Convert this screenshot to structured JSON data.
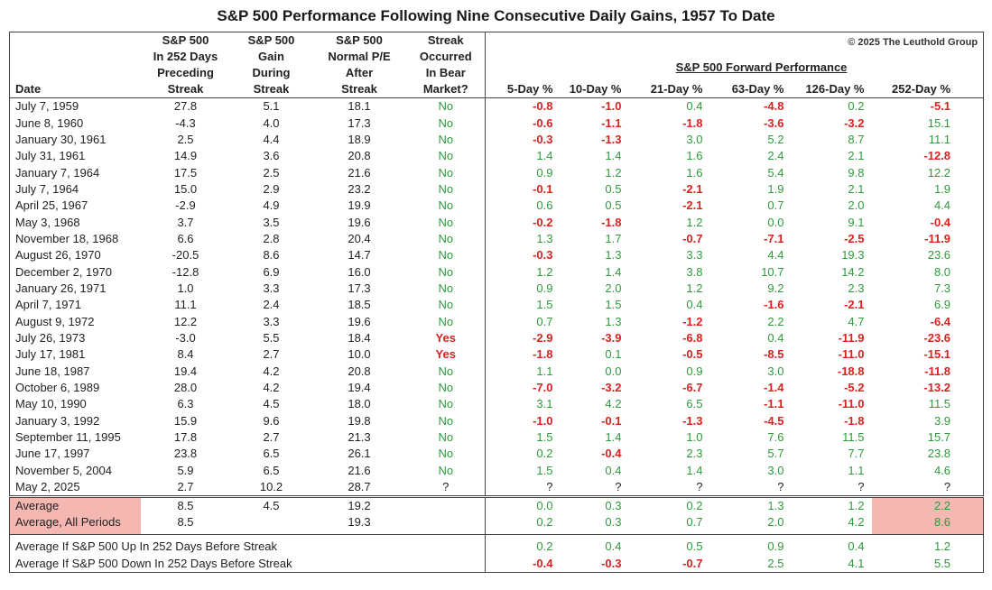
{
  "title": "S&P 500 Performance Following Nine Consecutive Daily Gains, 1957 To Date",
  "copyright": "© 2025 The Leuthold Group",
  "table": {
    "group_header": "S&P 500 Forward Performance",
    "columns": [
      [
        "Date"
      ],
      [
        "S&P 500",
        "In 252 Days",
        "Preceding",
        "Streak"
      ],
      [
        "S&P 500",
        "Gain",
        "During",
        "Streak"
      ],
      [
        "S&P 500",
        "Normal P/E",
        "After",
        "Streak"
      ],
      [
        "Streak",
        "Occurred",
        "In Bear",
        "Market?"
      ],
      [
        "5-Day %"
      ],
      [
        "10-Day %"
      ],
      [
        "21-Day %"
      ],
      [
        "63-Day %"
      ],
      [
        "126-Day %"
      ],
      [
        "252-Day %"
      ]
    ],
    "rows": [
      [
        "July 7, 1959",
        "27.8",
        "5.1",
        "18.1",
        "No",
        "-0.8",
        "-1.0",
        "0.4",
        "-4.8",
        "0.2",
        "-5.1"
      ],
      [
        "June 8, 1960",
        "-4.3",
        "4.0",
        "17.3",
        "No",
        "-0.6",
        "-1.1",
        "-1.8",
        "-3.6",
        "-3.2",
        "15.1"
      ],
      [
        "January 30, 1961",
        "2.5",
        "4.4",
        "18.9",
        "No",
        "-0.3",
        "-1.3",
        "3.0",
        "5.2",
        "8.7",
        "11.1"
      ],
      [
        "July 31, 1961",
        "14.9",
        "3.6",
        "20.8",
        "No",
        "1.4",
        "1.4",
        "1.6",
        "2.4",
        "2.1",
        "-12.8"
      ],
      [
        "January 7, 1964",
        "17.5",
        "2.5",
        "21.6",
        "No",
        "0.9",
        "1.2",
        "1.6",
        "5.4",
        "9.8",
        "12.2"
      ],
      [
        "July 7, 1964",
        "15.0",
        "2.9",
        "23.2",
        "No",
        "-0.1",
        "0.5",
        "-2.1",
        "1.9",
        "2.1",
        "1.9"
      ],
      [
        "April 25, 1967",
        "-2.9",
        "4.9",
        "19.9",
        "No",
        "0.6",
        "0.5",
        "-2.1",
        "0.7",
        "2.0",
        "4.4"
      ],
      [
        "May 3, 1968",
        "3.7",
        "3.5",
        "19.6",
        "No",
        "-0.2",
        "-1.8",
        "1.2",
        "0.0",
        "9.1",
        "-0.4"
      ],
      [
        "November 18, 1968",
        "6.6",
        "2.8",
        "20.4",
        "No",
        "1.3",
        "1.7",
        "-0.7",
        "-7.1",
        "-2.5",
        "-11.9"
      ],
      [
        "August 26, 1970",
        "-20.5",
        "8.6",
        "14.7",
        "No",
        "-0.3",
        "1.3",
        "3.3",
        "4.4",
        "19.3",
        "23.6"
      ],
      [
        "December 2, 1970",
        "-12.8",
        "6.9",
        "16.0",
        "No",
        "1.2",
        "1.4",
        "3.8",
        "10.7",
        "14.2",
        "8.0"
      ],
      [
        "January 26, 1971",
        "1.0",
        "3.3",
        "17.3",
        "No",
        "0.9",
        "2.0",
        "1.2",
        "9.2",
        "2.3",
        "7.3"
      ],
      [
        "April 7, 1971",
        "11.1",
        "2.4",
        "18.5",
        "No",
        "1.5",
        "1.5",
        "0.4",
        "-1.6",
        "-2.1",
        "6.9"
      ],
      [
        "August 9, 1972",
        "12.2",
        "3.3",
        "19.6",
        "No",
        "0.7",
        "1.3",
        "-1.2",
        "2.2",
        "4.7",
        "-6.4"
      ],
      [
        "July 26, 1973",
        "-3.0",
        "5.5",
        "18.4",
        "Yes",
        "-2.9",
        "-3.9",
        "-6.8",
        "0.4",
        "-11.9",
        "-23.6"
      ],
      [
        "July 17, 1981",
        "8.4",
        "2.7",
        "10.0",
        "Yes",
        "-1.8",
        "0.1",
        "-0.5",
        "-8.5",
        "-11.0",
        "-15.1"
      ],
      [
        "June 18, 1987",
        "19.4",
        "4.2",
        "20.8",
        "No",
        "1.1",
        "0.0",
        "0.9",
        "3.0",
        "-18.8",
        "-11.8"
      ],
      [
        "October 6, 1989",
        "28.0",
        "4.2",
        "19.4",
        "No",
        "-7.0",
        "-3.2",
        "-6.7",
        "-1.4",
        "-5.2",
        "-13.2"
      ],
      [
        "May 10, 1990",
        "6.3",
        "4.5",
        "18.0",
        "No",
        "3.1",
        "4.2",
        "6.5",
        "-1.1",
        "-11.0",
        "11.5"
      ],
      [
        "January 3, 1992",
        "15.9",
        "9.6",
        "19.8",
        "No",
        "-1.0",
        "-0.1",
        "-1.3",
        "-4.5",
        "-1.8",
        "3.9"
      ],
      [
        "September 11, 1995",
        "17.8",
        "2.7",
        "21.3",
        "No",
        "1.5",
        "1.4",
        "1.0",
        "7.6",
        "11.5",
        "15.7"
      ],
      [
        "June 17, 1997",
        "23.8",
        "6.5",
        "26.1",
        "No",
        "0.2",
        "-0.4",
        "2.3",
        "5.7",
        "7.7",
        "23.8"
      ],
      [
        "November 5, 2004",
        "5.9",
        "6.5",
        "21.6",
        "No",
        "1.5",
        "0.4",
        "1.4",
        "3.0",
        "1.1",
        "4.6"
      ],
      [
        "May 2, 2025",
        "2.7",
        "10.2",
        "28.7",
        "?",
        "?",
        "?",
        "?",
        "?",
        "?",
        "?"
      ]
    ],
    "summary_rows": [
      [
        "Average",
        "8.5",
        "4.5",
        "19.2",
        null,
        "0.0",
        "0.3",
        "0.2",
        "1.3",
        "1.2",
        "2.2"
      ],
      [
        "Average, All Periods",
        "8.5",
        null,
        "19.3",
        null,
        "0.2",
        "0.3",
        "0.7",
        "2.0",
        "4.2",
        "8.6"
      ],
      [
        "Average If S&P 500 Up In 252 Days Before Streak",
        null,
        null,
        null,
        null,
        "0.2",
        "0.4",
        "0.5",
        "0.9",
        "0.4",
        "1.2"
      ],
      [
        "Average If S&P 500 Down In 252 Days Before Streak",
        null,
        null,
        null,
        null,
        "-0.4",
        "-0.3",
        "-0.7",
        "2.5",
        "4.1",
        "5.5"
      ]
    ]
  }
}
